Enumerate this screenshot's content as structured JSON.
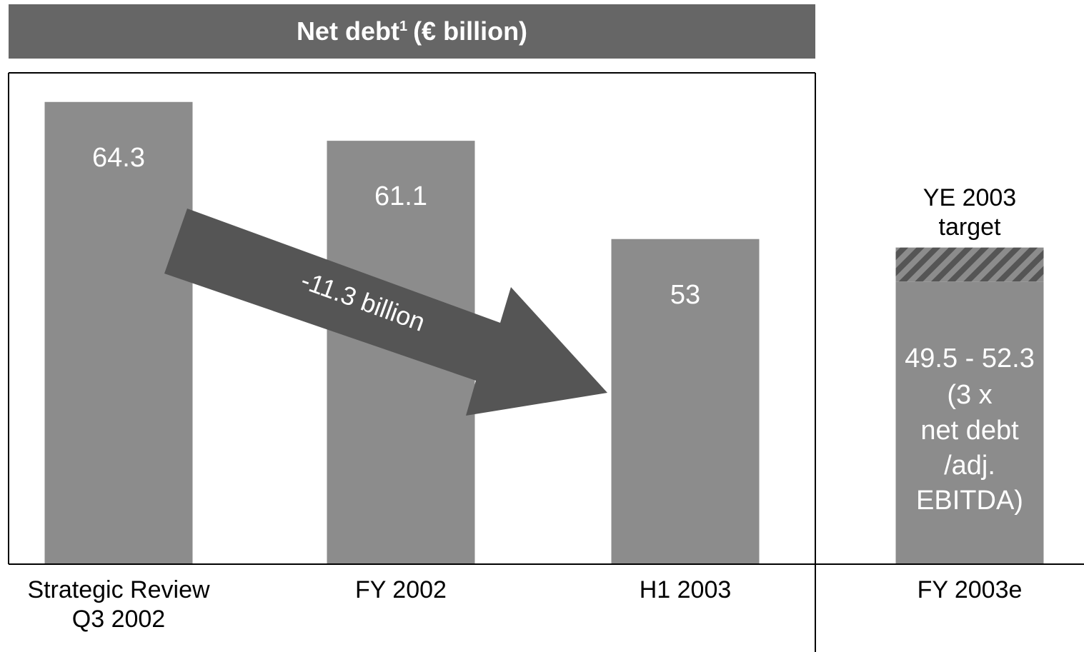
{
  "chart_data": {
    "type": "bar",
    "title": "Net debt",
    "title_sup": "1",
    "title_rest": "(€ billion)",
    "categories": [
      "Strategic Review\nQ3 2002",
      "FY 2002",
      "H1 2003",
      "FY 2003e"
    ],
    "values": [
      64.3,
      61.1,
      53.0,
      null
    ],
    "color": "#8c8c8c",
    "ylim": [
      26.2,
      66.7
    ],
    "annotation": "-11.3 billion",
    "target": {
      "label": "YE 2003\ntarget",
      "low": 49.5,
      "high": 52.3,
      "value_label": "49.5 - 52.3",
      "note": "(3 x\nnet debt\n/adj.\nEBITDA)"
    }
  }
}
